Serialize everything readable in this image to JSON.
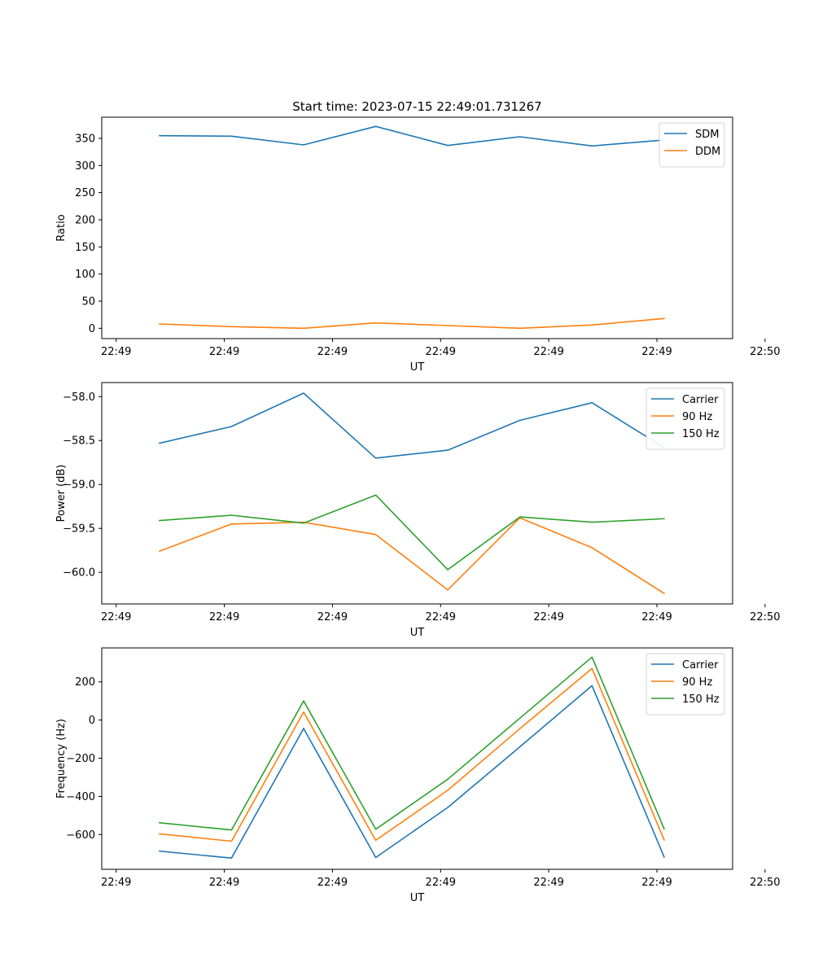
{
  "figure_title": "Start time: 2023-07-15 22:49:01.731267",
  "colors": {
    "blue": "#1f77b4",
    "orange": "#ff7f0e",
    "green": "#2ca02c"
  },
  "chart_data": [
    {
      "type": "line",
      "name": "ratio-chart",
      "title": "Start time: 2023-07-15 22:49:01.731267",
      "xlabel": "UT",
      "ylabel": "Ratio",
      "x": [
        1,
        2,
        3,
        4,
        5,
        6,
        7,
        8
      ],
      "xlim": [
        0.2,
        8.95
      ],
      "x_ticks": [
        0.4,
        1.9,
        3.4,
        4.9,
        6.4,
        7.9,
        9.4
      ],
      "x_tick_labels": [
        "22:49",
        "22:49",
        "22:49",
        "22:49",
        "22:49",
        "22:49",
        "22:50"
      ],
      "ylim": [
        -19,
        389
      ],
      "y_ticks": [
        0,
        50,
        100,
        150,
        200,
        250,
        300,
        350
      ],
      "y_tick_labels": [
        "0",
        "50",
        "100",
        "150",
        "200",
        "250",
        "300",
        "350"
      ],
      "legend": "top-right",
      "series": [
        {
          "name": "SDM",
          "color": "#1f77b4",
          "values": [
            355,
            354,
            338,
            372,
            337,
            353,
            336,
            347
          ]
        },
        {
          "name": "DDM",
          "color": "#ff7f0e",
          "values": [
            8,
            3,
            0,
            10,
            5,
            0,
            6,
            18
          ]
        }
      ]
    },
    {
      "type": "line",
      "name": "power-chart",
      "title": "",
      "xlabel": "UT",
      "ylabel": "Power (dB)",
      "x": [
        1,
        2,
        3,
        4,
        5,
        6,
        7,
        8
      ],
      "xlim": [
        0.2,
        8.95
      ],
      "x_ticks": [
        0.4,
        1.9,
        3.4,
        4.9,
        6.4,
        7.9,
        9.4
      ],
      "x_tick_labels": [
        "22:49",
        "22:49",
        "22:49",
        "22:49",
        "22:49",
        "22:49",
        "22:50"
      ],
      "ylim": [
        -60.36,
        -57.84
      ],
      "y_ticks": [
        -60.0,
        -59.5,
        -59.0,
        -58.5,
        -58.0
      ],
      "y_tick_labels": [
        "−60.0",
        "−59.5",
        "−59.0",
        "−58.5",
        "−58.0"
      ],
      "legend": "top-right",
      "series": [
        {
          "name": "Carrier",
          "color": "#1f77b4",
          "values": [
            -58.53,
            -58.34,
            -57.96,
            -58.7,
            -58.61,
            -58.27,
            -58.07,
            -58.58
          ]
        },
        {
          "name": "90 Hz",
          "color": "#ff7f0e",
          "values": [
            -59.76,
            -59.45,
            -59.43,
            -59.57,
            -60.2,
            -59.38,
            -59.72,
            -60.24
          ]
        },
        {
          "name": "150 Hz",
          "color": "#2ca02c",
          "values": [
            -59.41,
            -59.35,
            -59.44,
            -59.12,
            -59.97,
            -59.37,
            -59.43,
            -59.39
          ]
        }
      ]
    },
    {
      "type": "line",
      "name": "frequency-chart",
      "title": "",
      "xlabel": "UT",
      "ylabel": "Frequency (Hz)",
      "x": [
        1,
        2,
        3,
        4,
        5,
        6,
        7,
        8
      ],
      "xlim": [
        0.2,
        8.95
      ],
      "x_ticks": [
        0.4,
        1.9,
        3.4,
        4.9,
        6.4,
        7.9,
        9.4
      ],
      "x_tick_labels": [
        "22:49",
        "22:49",
        "22:49",
        "22:49",
        "22:49",
        "22:49",
        "22:50"
      ],
      "ylim": [
        -782,
        378
      ],
      "y_ticks": [
        -600,
        -400,
        -200,
        0,
        200
      ],
      "y_tick_labels": [
        "−600",
        "−400",
        "−200",
        "0",
        "200"
      ],
      "legend": "top-right",
      "series": [
        {
          "name": "Carrier",
          "color": "#1f77b4",
          "values": [
            -687,
            -723,
            -44,
            -720,
            -458,
            -140,
            180,
            -717
          ]
        },
        {
          "name": "90 Hz",
          "color": "#ff7f0e",
          "values": [
            -596,
            -635,
            42,
            -630,
            -368,
            -45,
            270,
            -628
          ]
        },
        {
          "name": "150 Hz",
          "color": "#2ca02c",
          "values": [
            -538,
            -576,
            100,
            -572,
            -310,
            10,
            330,
            -570
          ]
        }
      ]
    }
  ]
}
